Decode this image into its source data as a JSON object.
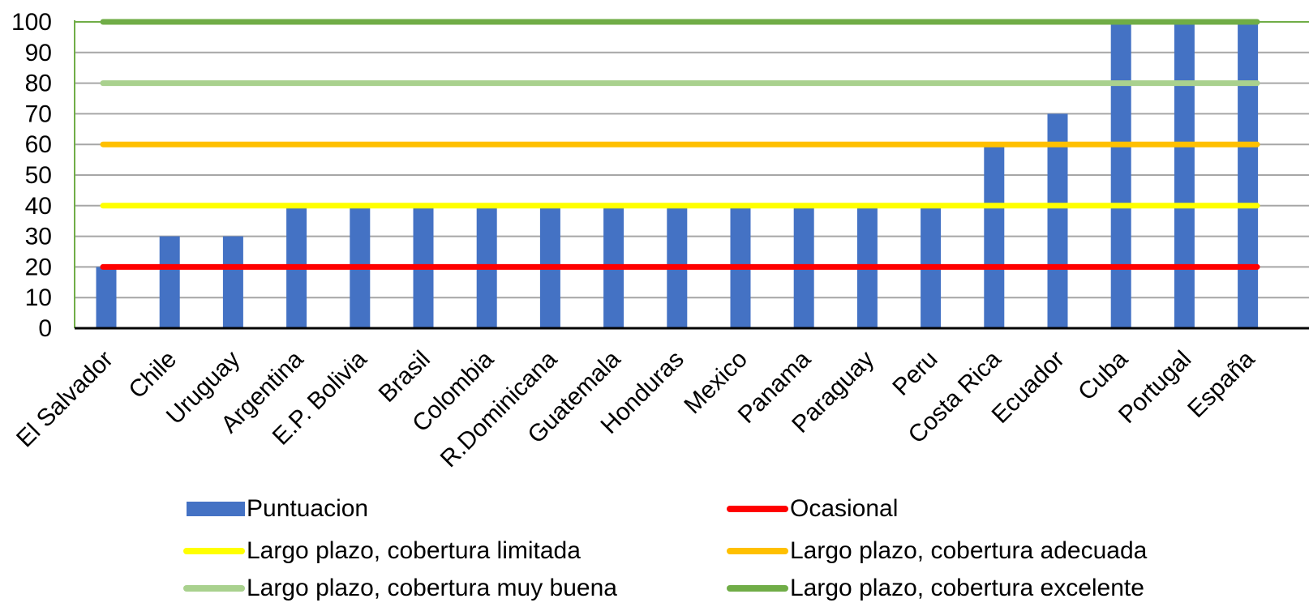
{
  "chart_data": {
    "type": "bar",
    "categories": [
      "El Salvador",
      "Chile",
      "Uruguay",
      "Argentina",
      "E.P. Bolivia",
      "Brasil",
      "Colombia",
      "R.Dominicana",
      "Guatemala",
      "Honduras",
      "Mexico",
      "Panama",
      "Paraguay",
      "Peru",
      "Costa Rica",
      "Ecuador",
      "Cuba",
      "Portugal",
      "España"
    ],
    "series": [
      {
        "name": "Puntuacion",
        "kind": "bar",
        "color": "#4472C4",
        "values": [
          20,
          30,
          30,
          40,
          40,
          40,
          40,
          40,
          40,
          40,
          40,
          40,
          40,
          40,
          60,
          70,
          100,
          100,
          100
        ]
      }
    ],
    "reference_lines": [
      {
        "name": "Ocasional",
        "value": 20,
        "color": "#FF0000"
      },
      {
        "name": "Largo plazo, cobertura limitada",
        "value": 40,
        "color": "#FFFF00"
      },
      {
        "name": "Largo plazo, cobertura adecuada",
        "value": 60,
        "color": "#FFC000"
      },
      {
        "name": "Largo plazo, cobertura muy buena",
        "value": 80,
        "color": "#A9D18E"
      },
      {
        "name": "Largo plazo, cobertura excelente",
        "value": 100,
        "color": "#70AD47"
      }
    ],
    "ylim": [
      0,
      100
    ],
    "yticks": [
      0,
      10,
      20,
      30,
      40,
      50,
      60,
      70,
      80,
      90,
      100
    ],
    "grid": true,
    "legend_position": "bottom"
  },
  "legend": {
    "bar_label": "Puntuacion",
    "line1_label": "Ocasional",
    "line2_label": "Largo plazo, cobertura limitada",
    "line3_label": "Largo plazo, cobertura adecuada",
    "line4_label": "Largo plazo, cobertura muy buena",
    "line5_label": "Largo plazo, cobertura excelente"
  }
}
